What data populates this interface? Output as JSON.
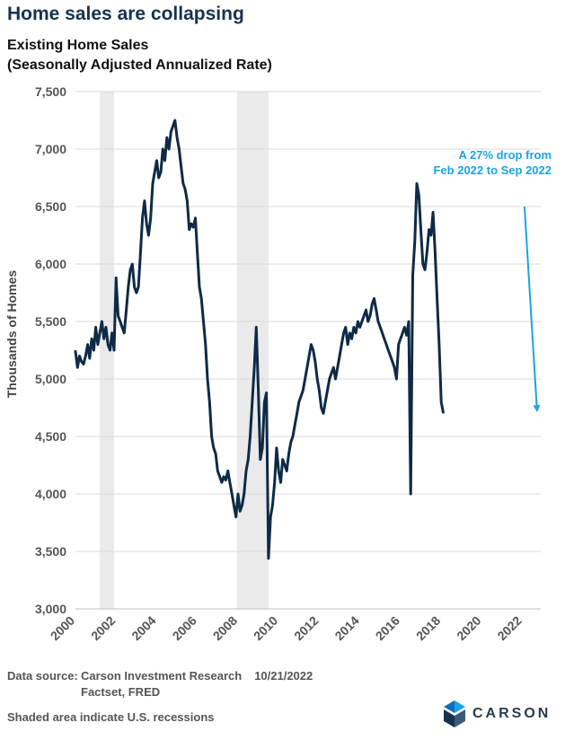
{
  "headline": "Home sales are collapsing",
  "source": {
    "label": "Data source:",
    "line1": "Carson Investment Research",
    "date": "10/21/2022",
    "line2": "Factset, FRED",
    "footnote": "Shaded area indicate U.S. recessions"
  },
  "logo": {
    "text": "CARSON",
    "icon": "carson-mark-icon"
  },
  "colors": {
    "line": "#0e2a47",
    "arrow": "#1aa3e8",
    "recession": "#eaeaea",
    "grid": "#d9d9d9",
    "title": "#16324f"
  },
  "chart_data": {
    "type": "line",
    "title": [
      "Existing Home Sales",
      "(Seasonally Adjusted Annualized Rate)"
    ],
    "ylabel": "Thousands of Homes",
    "xlabel": "",
    "ylim": [
      3000,
      7500
    ],
    "xlim": [
      2000,
      2022.9
    ],
    "yticks": [
      3000,
      3500,
      4000,
      4500,
      5000,
      5500,
      6000,
      6500,
      7000,
      7500
    ],
    "ytick_labels": [
      "3,000",
      "3,500",
      "4,000",
      "4,500",
      "5,000",
      "5,500",
      "6,000",
      "6,500",
      "7,000",
      "7,500"
    ],
    "xticks": [
      2000,
      2002,
      2004,
      2006,
      2008,
      2010,
      2012,
      2014,
      2016,
      2018,
      2020,
      2022
    ],
    "xtick_labels": [
      "2000",
      "2002",
      "2004",
      "2006",
      "2008",
      "2010",
      "2012",
      "2014",
      "2016",
      "2018",
      "2020",
      "2022"
    ],
    "grid": "horizontal",
    "recessions": [
      [
        2001.2,
        2001.9
      ],
      [
        2007.95,
        2009.5
      ]
    ],
    "annotation": {
      "lines": [
        "A 27% drop from",
        "Feb 2022 to Sep 2022"
      ],
      "from": [
        2022.1,
        6500
      ],
      "to": [
        2022.7,
        4710
      ]
    },
    "series": [
      {
        "values": [
          [
            2000.0,
            5240
          ],
          [
            2000.1,
            5100
          ],
          [
            2000.2,
            5200
          ],
          [
            2000.3,
            5150
          ],
          [
            2000.4,
            5130
          ],
          [
            2000.5,
            5200
          ],
          [
            2000.6,
            5300
          ],
          [
            2000.7,
            5180
          ],
          [
            2000.8,
            5350
          ],
          [
            2000.9,
            5250
          ],
          [
            2001.0,
            5450
          ],
          [
            2001.1,
            5300
          ],
          [
            2001.2,
            5400
          ],
          [
            2001.3,
            5500
          ],
          [
            2001.4,
            5350
          ],
          [
            2001.5,
            5450
          ],
          [
            2001.6,
            5300
          ],
          [
            2001.7,
            5250
          ],
          [
            2001.8,
            5400
          ],
          [
            2001.9,
            5250
          ],
          [
            2002.0,
            5880
          ],
          [
            2002.1,
            5550
          ],
          [
            2002.2,
            5500
          ],
          [
            2002.3,
            5450
          ],
          [
            2002.4,
            5400
          ],
          [
            2002.5,
            5600
          ],
          [
            2002.6,
            5800
          ],
          [
            2002.7,
            5950
          ],
          [
            2002.8,
            6000
          ],
          [
            2002.9,
            5800
          ],
          [
            2003.0,
            5750
          ],
          [
            2003.1,
            5800
          ],
          [
            2003.2,
            6100
          ],
          [
            2003.3,
            6400
          ],
          [
            2003.4,
            6550
          ],
          [
            2003.5,
            6350
          ],
          [
            2003.6,
            6250
          ],
          [
            2003.7,
            6400
          ],
          [
            2003.8,
            6700
          ],
          [
            2003.9,
            6800
          ],
          [
            2004.0,
            6900
          ],
          [
            2004.1,
            6750
          ],
          [
            2004.2,
            6800
          ],
          [
            2004.3,
            7000
          ],
          [
            2004.4,
            6900
          ],
          [
            2004.5,
            7100
          ],
          [
            2004.6,
            7000
          ],
          [
            2004.7,
            7150
          ],
          [
            2004.8,
            7200
          ],
          [
            2004.9,
            7250
          ],
          [
            2005.0,
            7100
          ],
          [
            2005.1,
            7000
          ],
          [
            2005.2,
            6850
          ],
          [
            2005.3,
            6700
          ],
          [
            2005.4,
            6650
          ],
          [
            2005.5,
            6550
          ],
          [
            2005.6,
            6300
          ],
          [
            2005.7,
            6350
          ],
          [
            2005.8,
            6320
          ],
          [
            2005.9,
            6400
          ],
          [
            2006.0,
            6100
          ],
          [
            2006.1,
            5800
          ],
          [
            2006.2,
            5700
          ],
          [
            2006.3,
            5500
          ],
          [
            2006.4,
            5300
          ],
          [
            2006.5,
            5000
          ],
          [
            2006.6,
            4800
          ],
          [
            2006.7,
            4500
          ],
          [
            2006.8,
            4400
          ],
          [
            2006.9,
            4350
          ],
          [
            2007.0,
            4200
          ],
          [
            2007.1,
            4150
          ],
          [
            2007.2,
            4100
          ],
          [
            2007.3,
            4150
          ],
          [
            2007.4,
            4120
          ],
          [
            2007.5,
            4200
          ],
          [
            2007.6,
            4100
          ],
          [
            2007.7,
            4000
          ],
          [
            2007.8,
            3900
          ],
          [
            2007.9,
            3800
          ],
          [
            2008.0,
            4000
          ],
          [
            2008.1,
            3850
          ],
          [
            2008.2,
            3900
          ],
          [
            2008.3,
            4000
          ],
          [
            2008.4,
            4200
          ],
          [
            2008.5,
            4300
          ],
          [
            2008.6,
            4500
          ],
          [
            2008.7,
            4800
          ],
          [
            2008.8,
            5100
          ],
          [
            2008.9,
            5450
          ],
          [
            2009.0,
            4900
          ],
          [
            2009.1,
            4300
          ],
          [
            2009.2,
            4400
          ],
          [
            2009.3,
            4800
          ],
          [
            2009.4,
            4880
          ],
          [
            2009.5,
            3440
          ],
          [
            2009.6,
            3800
          ],
          [
            2009.7,
            3900
          ],
          [
            2009.8,
            4100
          ],
          [
            2009.9,
            4400
          ],
          [
            2010.0,
            4200
          ],
          [
            2010.1,
            4100
          ],
          [
            2010.2,
            4300
          ],
          [
            2010.3,
            4250
          ],
          [
            2010.4,
            4200
          ],
          [
            2010.5,
            4350
          ],
          [
            2010.6,
            4450
          ],
          [
            2010.7,
            4500
          ],
          [
            2010.8,
            4600
          ],
          [
            2010.9,
            4700
          ],
          [
            2011.0,
            4800
          ],
          [
            2011.1,
            4850
          ],
          [
            2011.2,
            4900
          ],
          [
            2011.3,
            5000
          ],
          [
            2011.4,
            5100
          ],
          [
            2011.5,
            5200
          ],
          [
            2011.6,
            5300
          ],
          [
            2011.7,
            5250
          ],
          [
            2011.8,
            5150
          ],
          [
            2011.9,
            5000
          ],
          [
            2012.0,
            4900
          ],
          [
            2012.1,
            4750
          ],
          [
            2012.2,
            4700
          ],
          [
            2012.3,
            4800
          ],
          [
            2012.4,
            4900
          ],
          [
            2012.5,
            5000
          ],
          [
            2012.6,
            5050
          ],
          [
            2012.7,
            5100
          ],
          [
            2012.8,
            5000
          ],
          [
            2012.9,
            5100
          ],
          [
            2013.0,
            5200
          ],
          [
            2013.1,
            5300
          ],
          [
            2013.2,
            5400
          ],
          [
            2013.3,
            5450
          ],
          [
            2013.4,
            5300
          ],
          [
            2013.5,
            5400
          ],
          [
            2013.6,
            5350
          ],
          [
            2013.7,
            5450
          ],
          [
            2013.8,
            5400
          ],
          [
            2013.9,
            5500
          ],
          [
            2014.0,
            5450
          ],
          [
            2014.1,
            5500
          ],
          [
            2014.2,
            5550
          ],
          [
            2014.3,
            5600
          ],
          [
            2014.4,
            5500
          ],
          [
            2014.5,
            5550
          ],
          [
            2014.6,
            5650
          ],
          [
            2014.7,
            5700
          ],
          [
            2014.8,
            5600
          ],
          [
            2014.9,
            5500
          ],
          [
            2015.0,
            5450
          ],
          [
            2015.1,
            5400
          ],
          [
            2015.2,
            5350
          ],
          [
            2015.3,
            5300
          ],
          [
            2015.4,
            5250
          ],
          [
            2015.5,
            5200
          ],
          [
            2015.6,
            5150
          ],
          [
            2015.7,
            5100
          ],
          [
            2015.8,
            5000
          ],
          [
            2015.9,
            5300
          ],
          [
            2016.0,
            5350
          ],
          [
            2016.1,
            5400
          ],
          [
            2016.2,
            5450
          ],
          [
            2016.3,
            5380
          ],
          [
            2016.4,
            5500
          ],
          [
            2016.5,
            4000
          ],
          [
            2016.6,
            5900
          ],
          [
            2016.7,
            6200
          ],
          [
            2016.8,
            6700
          ],
          [
            2016.9,
            6600
          ],
          [
            2017.0,
            6300
          ],
          [
            2017.1,
            6000
          ],
          [
            2017.2,
            5950
          ],
          [
            2017.3,
            6100
          ],
          [
            2017.4,
            6300
          ],
          [
            2017.5,
            6250
          ],
          [
            2017.6,
            6450
          ],
          [
            2017.7,
            6100
          ],
          [
            2017.8,
            5700
          ],
          [
            2017.9,
            5300
          ],
          [
            2018.0,
            4800
          ],
          [
            2018.1,
            4710
          ]
        ]
      }
    ]
  }
}
